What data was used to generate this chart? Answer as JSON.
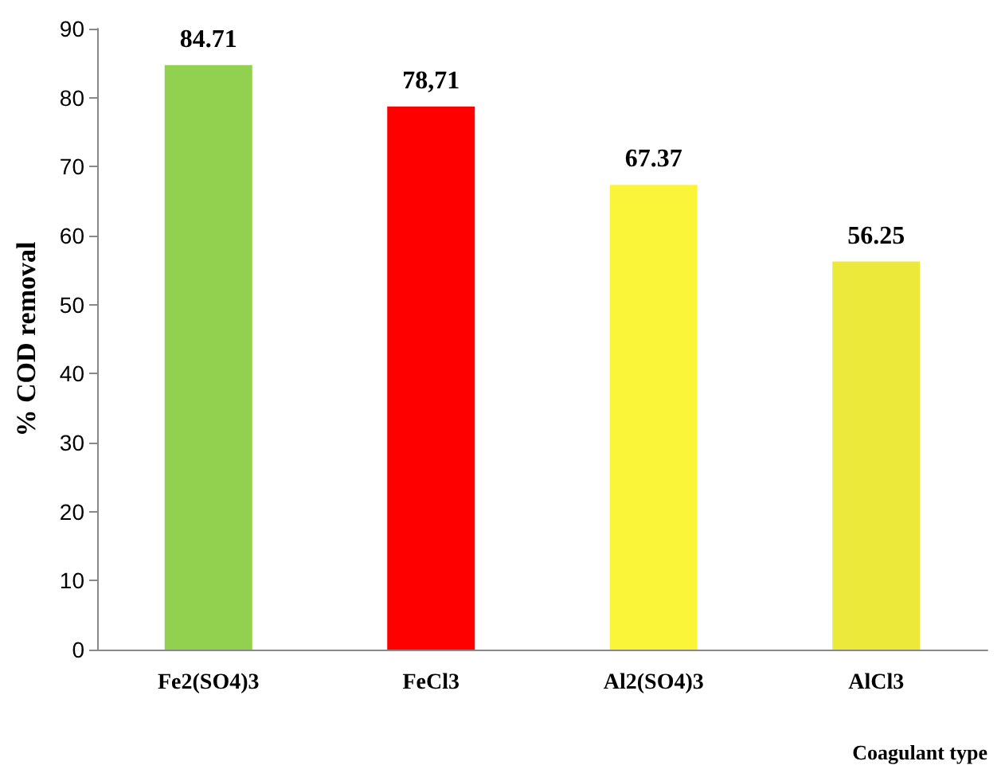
{
  "chart_data": {
    "type": "bar",
    "ylabel": "% COD removal",
    "xlabel": "Coagulant type",
    "categories": [
      "Fe2(SO4)3",
      "FeCl3",
      "Al2(SO4)3",
      "AlCl3"
    ],
    "values": [
      84.71,
      78.71,
      67.37,
      56.25
    ],
    "value_labels": [
      "84.71",
      "78,71",
      "67.37",
      "56.25"
    ],
    "colors": [
      "#92d050",
      "#ff0000",
      "#fbf53a",
      "#ece93a"
    ],
    "ylim": [
      0,
      90
    ],
    "yticks": [
      0,
      10,
      20,
      30,
      40,
      50,
      60,
      70,
      80,
      90
    ],
    "grid": false
  }
}
